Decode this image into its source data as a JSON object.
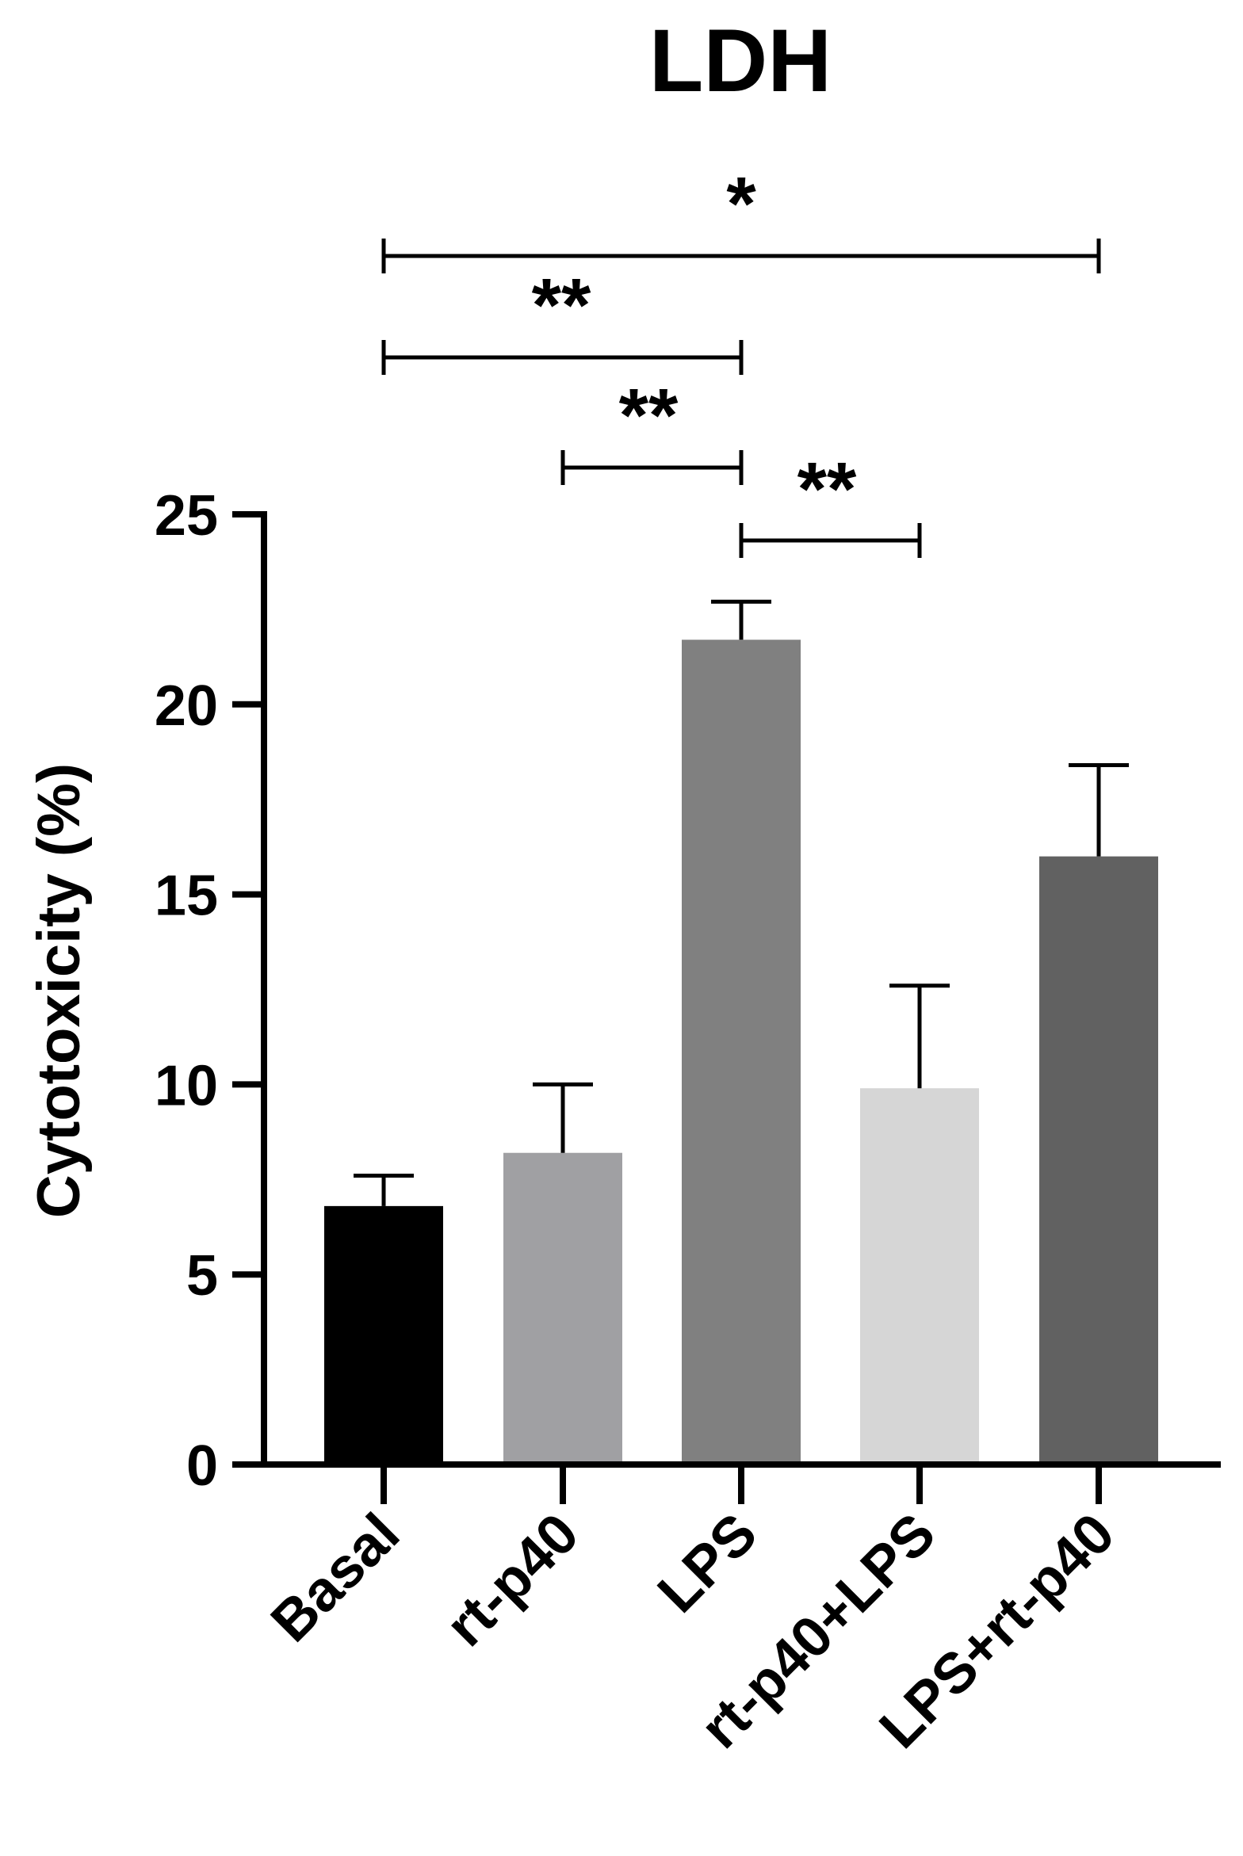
{
  "chart_data": {
    "type": "bar",
    "title": "LDH",
    "xlabel": "",
    "ylabel": "Cytotoxicity (%)",
    "ylim": [
      0,
      25
    ],
    "yticks": [
      0,
      5,
      10,
      15,
      20,
      25
    ],
    "grid": false,
    "categories": [
      "Basal",
      "rt-p40",
      "LPS",
      "rt-p40+LPS",
      "LPS+rt-p40"
    ],
    "values": [
      6.8,
      8.2,
      21.7,
      9.9,
      16.0
    ],
    "errors": [
      0.8,
      1.8,
      1.0,
      2.7,
      2.4
    ],
    "colors": [
      "#000000",
      "#a0a0a3",
      "#808080",
      "#d6d6d6",
      "#616161"
    ],
    "significance": [
      {
        "from": "Basal",
        "to": "LPS+rt-p40",
        "label": "*"
      },
      {
        "from": "Basal",
        "to": "LPS",
        "label": "**"
      },
      {
        "from": "rt-p40",
        "to": "LPS",
        "label": "**"
      },
      {
        "from": "LPS",
        "to": "rt-p40+LPS",
        "label": "**"
      }
    ]
  }
}
